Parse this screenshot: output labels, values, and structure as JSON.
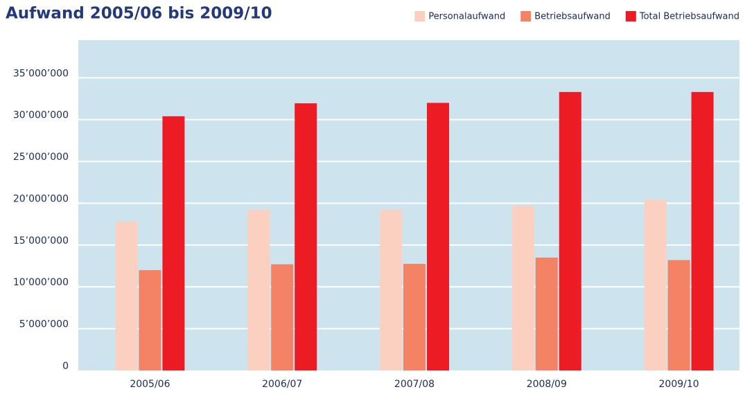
{
  "chart_data": {
    "type": "bar",
    "title": "Aufwand 2005/06 bis 2009/10",
    "categories": [
      "2005/06",
      "2006/07",
      "2007/08",
      "2008/09",
      "2009/10"
    ],
    "series": [
      {
        "name": "Personalaufwand",
        "color": "#fbd0c0",
        "values": [
          17800000,
          19200000,
          19200000,
          19700000,
          20400000
        ]
      },
      {
        "name": "Betriebsaufwand",
        "color": "#f48366",
        "values": [
          12000000,
          12700000,
          12750000,
          13500000,
          13200000
        ]
      },
      {
        "name": "Total Betriebsaufwand",
        "color": "#ed1c24",
        "values": [
          30400000,
          31950000,
          32000000,
          33300000,
          33300000
        ]
      }
    ],
    "ylim": [
      0,
      39500000
    ],
    "yticks": [
      0,
      {
        "value": 5000000,
        "label": "5’000’000"
      },
      {
        "value": 10000000,
        "label": "10’000’000"
      },
      {
        "value": 15000000,
        "label": "15’000’000"
      },
      {
        "value": 20000000,
        "label": "20’000’000"
      },
      {
        "value": 25000000,
        "label": "25’000’000"
      },
      {
        "value": 30000000,
        "label": "30’000’000"
      },
      {
        "value": 35000000,
        "label": "35’000’000"
      }
    ],
    "grid": true,
    "legend": "top-right",
    "background": "#cde4ee"
  }
}
